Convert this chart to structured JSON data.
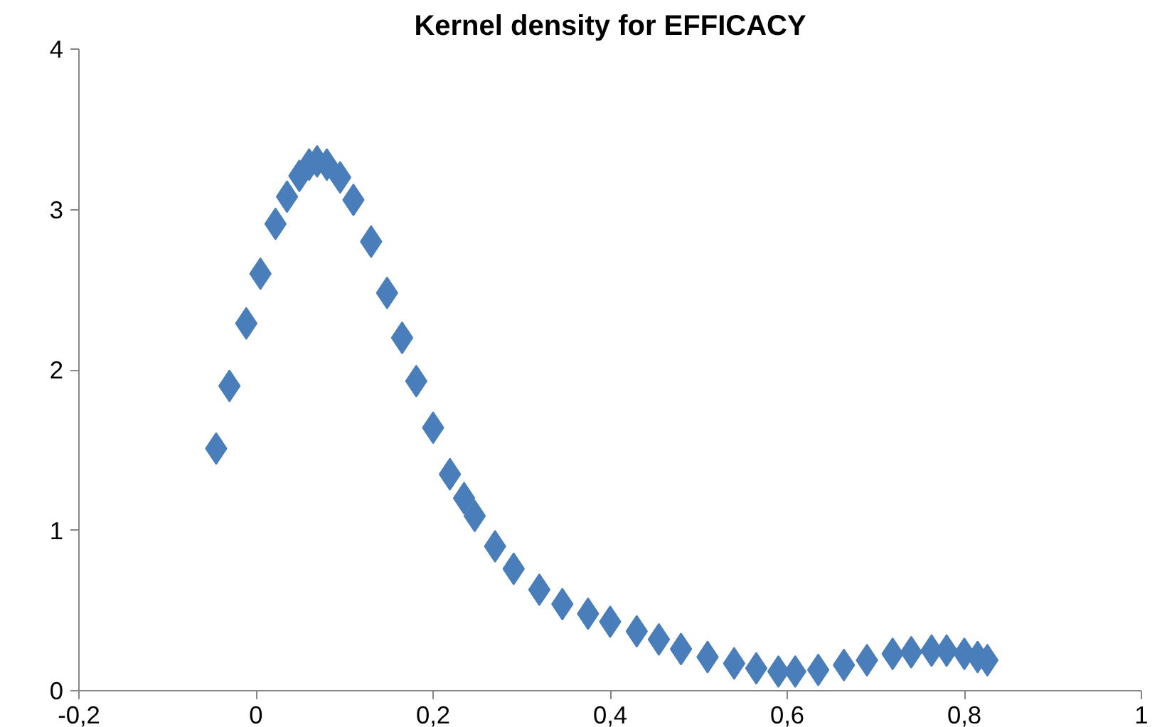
{
  "chart_data": {
    "type": "scatter",
    "title": "Kernel density for EFFICACY",
    "marker": "diamond",
    "grid": false,
    "xlim": [
      -0.2,
      1
    ],
    "ylim": [
      0,
      4
    ],
    "xticks": [
      {
        "value": -0.2,
        "label": "-0,2"
      },
      0,
      {
        "value": 0.2,
        "label": "0,2"
      },
      {
        "value": 0.4,
        "label": "0,4"
      },
      {
        "value": 0.6,
        "label": "0,6"
      },
      {
        "value": 0.8,
        "label": "0,8"
      },
      1
    ],
    "yticks": [
      0,
      1,
      2,
      3,
      4
    ],
    "series": [
      {
        "color": "#4a7ebb",
        "x": [
          -0.045,
          -0.03,
          -0.011,
          0.005,
          0.022,
          0.035,
          0.049,
          0.06,
          0.069,
          0.08,
          0.095,
          0.11,
          0.13,
          0.148,
          0.165,
          0.181,
          0.2,
          0.219,
          0.235,
          0.247,
          0.27,
          0.291,
          0.32,
          0.346,
          0.375,
          0.4,
          0.43,
          0.455,
          0.48,
          0.51,
          0.54,
          0.565,
          0.59,
          0.609,
          0.635,
          0.664,
          0.69,
          0.719,
          0.74,
          0.763,
          0.78,
          0.8,
          0.815,
          0.826
        ],
        "values": [
          1.51,
          1.9,
          2.29,
          2.6,
          2.91,
          3.08,
          3.21,
          3.28,
          3.3,
          3.28,
          3.2,
          3.06,
          2.8,
          2.48,
          2.2,
          1.93,
          1.64,
          1.35,
          1.2,
          1.09,
          0.9,
          0.76,
          0.63,
          0.54,
          0.48,
          0.43,
          0.37,
          0.32,
          0.26,
          0.21,
          0.17,
          0.14,
          0.12,
          0.12,
          0.13,
          0.16,
          0.19,
          0.23,
          0.24,
          0.25,
          0.25,
          0.23,
          0.21,
          0.19
        ]
      }
    ]
  }
}
